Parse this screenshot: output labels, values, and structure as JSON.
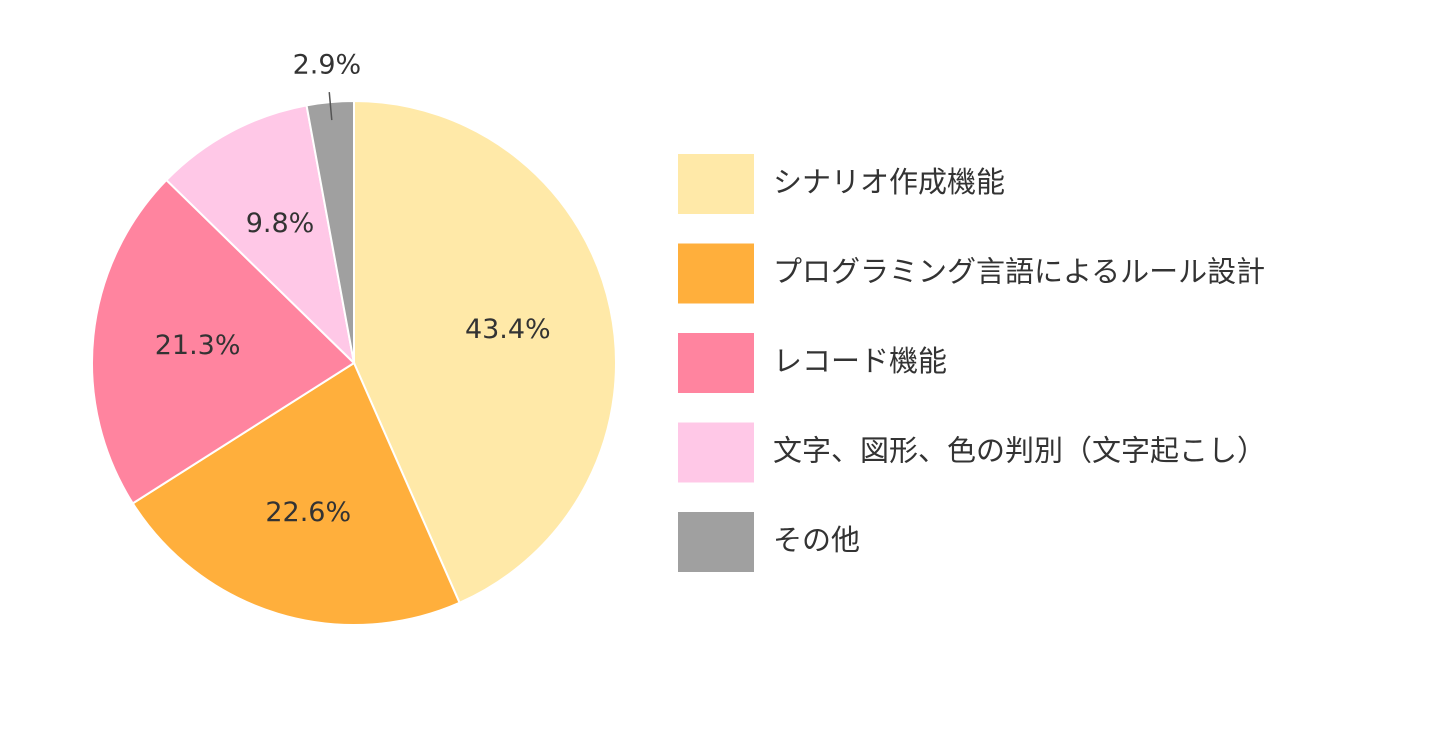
{
  "chart_data": {
    "type": "pie",
    "slices": [
      {
        "label": "シナリオ作成機能",
        "value": 43.4,
        "display": "43.4%",
        "color": "#FFE9A8"
      },
      {
        "label": "プログラミング言語によるルール設計",
        "value": 22.6,
        "display": "22.6%",
        "color": "#FFAF3C"
      },
      {
        "label": "レコード機能",
        "value": 21.3,
        "display": "21.3%",
        "color": "#FF849F"
      },
      {
        "label": "文字、図形、色の判別（文字起こし）",
        "value": 9.8,
        "display": "9.8%",
        "color": "#FFC8E7"
      },
      {
        "label": "その他",
        "value": 2.9,
        "display": "2.9%",
        "color": "#A0A0A0"
      }
    ],
    "start_angle": "12 o'clock",
    "direction": "clockwise",
    "legend_position": "right",
    "outside_label_slices": [
      "その他"
    ]
  }
}
